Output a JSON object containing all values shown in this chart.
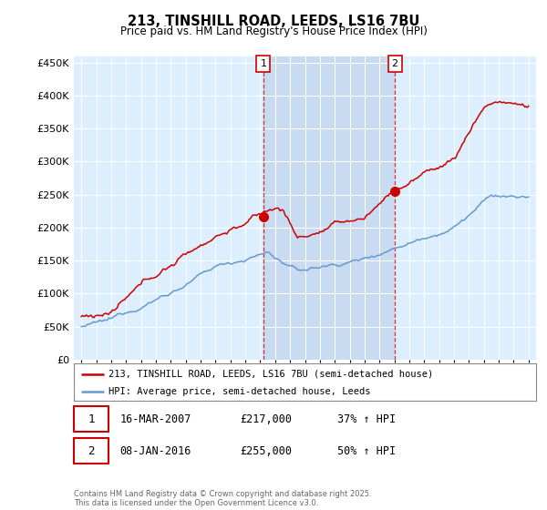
{
  "title_line1": "213, TINSHILL ROAD, LEEDS, LS16 7BU",
  "title_line2": "Price paid vs. HM Land Registry's House Price Index (HPI)",
  "ylim": [
    0,
    460000
  ],
  "yticks": [
    0,
    50000,
    100000,
    150000,
    200000,
    250000,
    300000,
    350000,
    400000,
    450000
  ],
  "ytick_labels": [
    "£0",
    "£50K",
    "£100K",
    "£150K",
    "£200K",
    "£250K",
    "£300K",
    "£350K",
    "£400K",
    "£450K"
  ],
  "sale1_date_x": 2007.21,
  "sale1_price": 217000,
  "sale1_label": "1",
  "sale1_date_str": "16-MAR-2007",
  "sale1_price_str": "£217,000",
  "sale1_hpi_str": "37% ↑ HPI",
  "sale2_date_x": 2016.03,
  "sale2_price": 255000,
  "sale2_label": "2",
  "sale2_date_str": "08-JAN-2016",
  "sale2_price_str": "£255,000",
  "sale2_hpi_str": "50% ↑ HPI",
  "red_color": "#cc0000",
  "blue_color": "#6699cc",
  "bg_color": "#ddeeff",
  "highlight_color": "#c8dbf0",
  "legend_label_red": "213, TINSHILL ROAD, LEEDS, LS16 7BU (semi-detached house)",
  "legend_label_blue": "HPI: Average price, semi-detached house, Leeds",
  "footer_text": "Contains HM Land Registry data © Crown copyright and database right 2025.\nThis data is licensed under the Open Government Licence v3.0.",
  "xmin": 1994.5,
  "xmax": 2025.5
}
